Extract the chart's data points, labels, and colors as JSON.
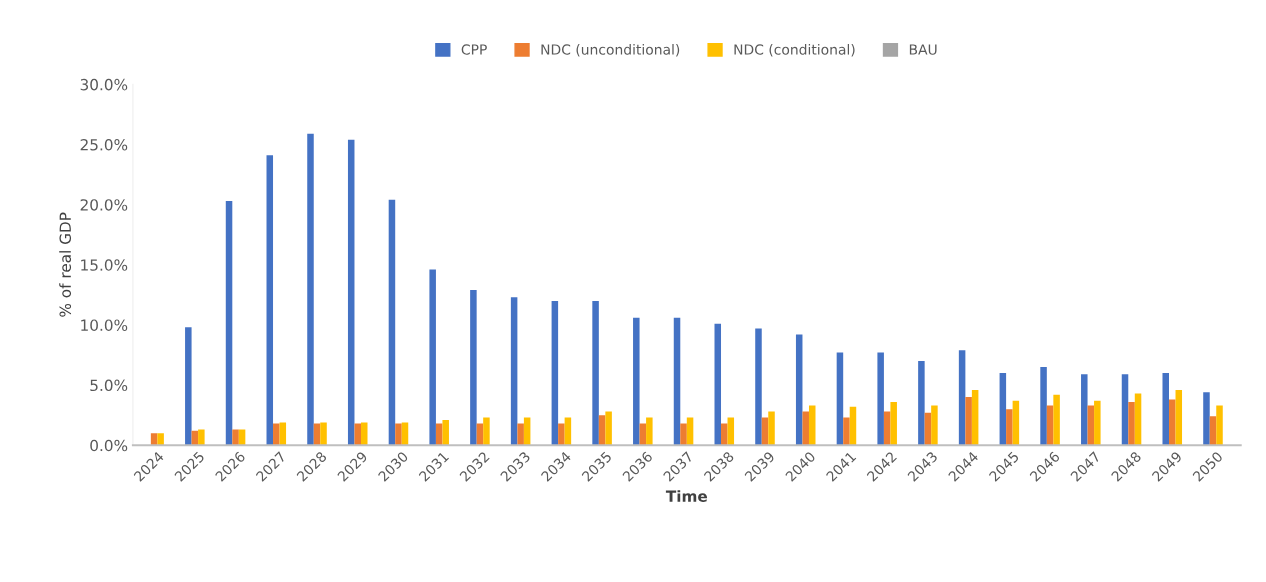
{
  "chart_data": {
    "type": "bar",
    "xlabel": "Time",
    "ylabel": "% of real GDP",
    "categories": [
      "2024",
      "2025",
      "2026",
      "2027",
      "2028",
      "2029",
      "2030",
      "2031",
      "2032",
      "2033",
      "2034",
      "2035",
      "2036",
      "2037",
      "2038",
      "2039",
      "2040",
      "2041",
      "2042",
      "2043",
      "2044",
      "2045",
      "2046",
      "2047",
      "2048",
      "2049",
      "2050"
    ],
    "series": [
      {
        "name": "CPP",
        "color": "#4472c4",
        "values": [
          0,
          9.8,
          20.3,
          24.1,
          25.9,
          25.4,
          20.4,
          14.6,
          12.9,
          12.3,
          12.0,
          12.0,
          10.6,
          10.6,
          10.1,
          9.7,
          9.2,
          7.7,
          7.7,
          7.0,
          7.9,
          6.0,
          6.5,
          5.9,
          5.9,
          6.0,
          4.4
        ]
      },
      {
        "name": "NDC (unconditional)",
        "color": "#ed7d31",
        "values": [
          1.0,
          1.2,
          1.3,
          1.8,
          1.8,
          1.8,
          1.8,
          1.8,
          1.8,
          1.8,
          1.8,
          2.5,
          1.8,
          1.8,
          1.8,
          2.3,
          2.8,
          2.3,
          2.8,
          2.7,
          4.0,
          3.0,
          3.3,
          3.3,
          3.6,
          3.8,
          2.4
        ]
      },
      {
        "name": "NDC (conditional)",
        "color": "#ffc000",
        "values": [
          1.0,
          1.3,
          1.3,
          1.9,
          1.9,
          1.9,
          1.9,
          2.1,
          2.3,
          2.3,
          2.3,
          2.8,
          2.3,
          2.3,
          2.3,
          2.8,
          3.3,
          3.2,
          3.6,
          3.3,
          4.6,
          3.7,
          4.2,
          3.7,
          4.3,
          4.6,
          3.3
        ]
      },
      {
        "name": "BAU",
        "color": "#a5a5a5",
        "values": [
          0,
          0,
          0,
          0,
          0,
          0,
          0,
          0,
          0,
          0,
          0,
          0,
          0,
          0,
          0,
          0,
          0,
          0,
          0,
          0,
          0,
          0,
          0,
          0,
          0,
          0,
          0
        ]
      }
    ],
    "ylim": [
      0,
      30
    ],
    "yticks": [
      {
        "value": 0,
        "label": "0.0%"
      },
      {
        "value": 5,
        "label": "5.0%"
      },
      {
        "value": 10,
        "label": "10.0%"
      },
      {
        "value": 15,
        "label": "15.0%"
      },
      {
        "value": 20,
        "label": "20.0%"
      },
      {
        "value": 25,
        "label": "25.0%"
      },
      {
        "value": 30,
        "label": "30.0%"
      }
    ],
    "grid": false,
    "legend": "top"
  }
}
